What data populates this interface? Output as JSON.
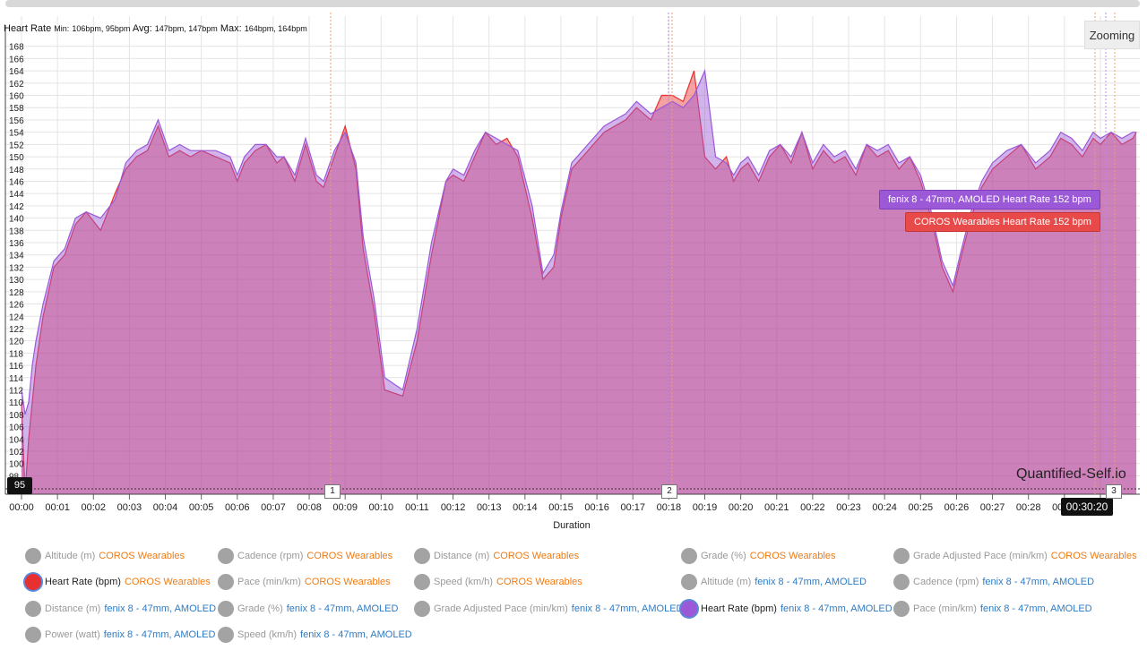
{
  "chart_data": {
    "type": "area",
    "title": "Heart Rate",
    "stats": {
      "min_label": "Min:",
      "min_value": "106bpm, 95bpm",
      "avg_label": "Avg:",
      "avg_value": "147bpm, 147bpm",
      "max_label": "Max:",
      "max_value": "164bpm, 164bpm"
    },
    "xlabel": "Duration",
    "ylim": [
      95,
      170
    ],
    "xlim": [
      0,
      31
    ],
    "y_ticks": [
      98,
      100,
      102,
      104,
      106,
      108,
      110,
      112,
      114,
      116,
      118,
      120,
      122,
      124,
      126,
      128,
      130,
      132,
      134,
      136,
      138,
      140,
      142,
      144,
      146,
      148,
      150,
      152,
      154,
      156,
      158,
      160,
      162,
      164,
      166,
      168
    ],
    "x_ticks": [
      "00:00",
      "00:01",
      "00:02",
      "00:03",
      "00:04",
      "00:05",
      "00:06",
      "00:07",
      "00:08",
      "00:09",
      "00:10",
      "00:11",
      "00:12",
      "00:13",
      "00:14",
      "00:15",
      "00:16",
      "00:17",
      "00:18",
      "00:19",
      "00:20",
      "00:21",
      "00:22",
      "00:23",
      "00:24",
      "00:25",
      "00:26",
      "00:27",
      "00:28",
      "00:29",
      "00:3"
    ],
    "series": [
      {
        "name": "COROS Wearables Heart Rate",
        "color": "#e83030",
        "x": [
          0,
          0.1,
          0.2,
          0.3,
          0.4,
          0.6,
          0.9,
          1.2,
          1.5,
          1.8,
          2.2,
          2.6,
          2.9,
          3.2,
          3.5,
          3.8,
          4.1,
          4.4,
          4.7,
          5.0,
          5.4,
          5.8,
          6.0,
          6.2,
          6.5,
          6.8,
          7.1,
          7.3,
          7.6,
          7.9,
          8.2,
          8.4,
          8.7,
          9.0,
          9.3,
          9.5,
          9.8,
          10.1,
          10.6,
          11.0,
          11.4,
          11.8,
          12.0,
          12.3,
          12.6,
          12.9,
          13.2,
          13.5,
          13.8,
          14.2,
          14.5,
          14.8,
          15.0,
          15.3,
          15.6,
          15.9,
          16.2,
          16.5,
          16.8,
          17.1,
          17.5,
          17.8,
          18.1,
          18.4,
          18.7,
          19.0,
          19.3,
          19.6,
          19.8,
          20.0,
          20.2,
          20.5,
          20.8,
          21.1,
          21.4,
          21.7,
          22.0,
          22.3,
          22.6,
          22.9,
          23.2,
          23.5,
          23.8,
          24.1,
          24.4,
          24.7,
          25.0,
          25.3,
          25.6,
          25.9,
          26.1,
          26.4,
          26.7,
          27.0,
          27.4,
          27.8,
          28.2,
          28.6,
          28.9,
          29.2,
          29.5,
          29.8,
          30.0,
          30.3,
          30.6,
          30.9,
          31.0
        ],
        "y": [
          110,
          95,
          104,
          110,
          116,
          124,
          132,
          134,
          139,
          141,
          138,
          144,
          148,
          150,
          151,
          155,
          150,
          151,
          150,
          151,
          150,
          149,
          146,
          149,
          151,
          152,
          149,
          150,
          146,
          152,
          146,
          145,
          150,
          155,
          148,
          135,
          125,
          112,
          111,
          120,
          134,
          146,
          147,
          146,
          150,
          154,
          152,
          153,
          150,
          140,
          130,
          132,
          140,
          148,
          150,
          152,
          154,
          155,
          156,
          158,
          156,
          160,
          160,
          159,
          164,
          150,
          148,
          150,
          146,
          148,
          149,
          146,
          150,
          152,
          149,
          154,
          148,
          151,
          149,
          150,
          147,
          152,
          150,
          151,
          148,
          150,
          146,
          140,
          132,
          128,
          133,
          140,
          145,
          148,
          150,
          152,
          148,
          150,
          153,
          152,
          150,
          153,
          152,
          154,
          152,
          153,
          154
        ],
        "comment": "approximate trace"
      },
      {
        "name": "fenix 8 - 47mm, AMOLED Heart Rate",
        "color": "#9b59d8",
        "x": [
          0,
          0.1,
          0.2,
          0.3,
          0.4,
          0.6,
          0.9,
          1.2,
          1.5,
          1.8,
          2.2,
          2.6,
          2.9,
          3.2,
          3.5,
          3.8,
          4.1,
          4.4,
          4.7,
          5.0,
          5.4,
          5.8,
          6.0,
          6.2,
          6.5,
          6.8,
          7.1,
          7.3,
          7.6,
          7.9,
          8.2,
          8.4,
          8.7,
          9.0,
          9.3,
          9.5,
          9.8,
          10.1,
          10.6,
          11.0,
          11.4,
          11.8,
          12.0,
          12.3,
          12.6,
          12.9,
          13.2,
          13.5,
          13.8,
          14.2,
          14.5,
          14.8,
          15.0,
          15.3,
          15.6,
          15.9,
          16.2,
          16.5,
          16.8,
          17.1,
          17.5,
          17.8,
          18.1,
          18.4,
          18.7,
          19.0,
          19.3,
          19.6,
          19.8,
          20.0,
          20.2,
          20.5,
          20.8,
          21.1,
          21.4,
          21.7,
          22.0,
          22.3,
          22.6,
          22.9,
          23.2,
          23.5,
          23.8,
          24.1,
          24.4,
          24.7,
          25.0,
          25.3,
          25.6,
          25.9,
          26.1,
          26.4,
          26.7,
          27.0,
          27.4,
          27.8,
          28.2,
          28.6,
          28.9,
          29.2,
          29.5,
          29.8,
          30.0,
          30.3,
          30.6,
          30.9,
          31.0
        ],
        "y": [
          112,
          108,
          110,
          116,
          120,
          126,
          133,
          135,
          140,
          141,
          140,
          143,
          149,
          151,
          152,
          156,
          151,
          152,
          151,
          151,
          151,
          150,
          147,
          150,
          152,
          152,
          150,
          150,
          147,
          153,
          147,
          146,
          151,
          154,
          149,
          137,
          127,
          114,
          112,
          122,
          136,
          146,
          148,
          147,
          151,
          154,
          153,
          152,
          151,
          142,
          131,
          134,
          141,
          149,
          151,
          153,
          155,
          156,
          157,
          159,
          157,
          158,
          159,
          158,
          160,
          164,
          150,
          149,
          147,
          149,
          150,
          147,
          151,
          152,
          150,
          154,
          149,
          152,
          150,
          151,
          148,
          152,
          151,
          152,
          149,
          150,
          147,
          141,
          133,
          129,
          134,
          141,
          146,
          149,
          151,
          152,
          149,
          151,
          154,
          153,
          151,
          154,
          153,
          154,
          153,
          154,
          154
        ],
        "comment": "approximate trace"
      }
    ]
  },
  "zoom_button_label": "Zooming",
  "watermark": "Quantified-Self.io",
  "tooltips": {
    "fenix": "fenix 8 - 47mm, AMOLED Heart Rate 152 bpm",
    "coros": "COROS Wearables Heart Rate 152 bpm"
  },
  "cursor": {
    "y_value": "95",
    "x_value": "00:30:20"
  },
  "laps": [
    "1",
    "2",
    "3"
  ],
  "legend": [
    {
      "metric": "Altitude (m)",
      "device": "COROS Wearables",
      "dev": "coros",
      "active": false
    },
    {
      "metric": "Cadence (rpm)",
      "device": "COROS Wearables",
      "dev": "coros",
      "active": false
    },
    {
      "metric": "Distance (m)",
      "device": "COROS Wearables",
      "dev": "coros",
      "active": false
    },
    {
      "metric": "Grade (%)",
      "device": "COROS Wearables",
      "dev": "coros",
      "active": false
    },
    {
      "metric": "Grade Adjusted Pace (min/km)",
      "device": "COROS Wearables",
      "dev": "coros",
      "active": false
    },
    {
      "metric": "Heart Rate (bpm)",
      "device": "COROS Wearables",
      "dev": "coros",
      "active": true
    },
    {
      "metric": "Pace (min/km)",
      "device": "COROS Wearables",
      "dev": "coros",
      "active": false
    },
    {
      "metric": "Speed (km/h)",
      "device": "COROS Wearables",
      "dev": "coros",
      "active": false
    },
    {
      "metric": "Altitude (m)",
      "device": "fenix 8 - 47mm, AMOLED",
      "dev": "fenix",
      "active": false
    },
    {
      "metric": "Cadence (rpm)",
      "device": "fenix 8 - 47mm, AMOLED",
      "dev": "fenix",
      "active": false
    },
    {
      "metric": "Distance (m)",
      "device": "fenix 8 - 47mm, AMOLED",
      "dev": "fenix",
      "active": false
    },
    {
      "metric": "Grade (%)",
      "device": "fenix 8 - 47mm, AMOLED",
      "dev": "fenix",
      "active": false
    },
    {
      "metric": "Grade Adjusted Pace (min/km)",
      "device": "fenix 8 - 47mm, AMOLED",
      "dev": "fenix",
      "active": false
    },
    {
      "metric": "Heart Rate (bpm)",
      "device": "fenix 8 - 47mm, AMOLED",
      "dev": "fenix",
      "active": true
    },
    {
      "metric": "Pace (min/km)",
      "device": "fenix 8 - 47mm, AMOLED",
      "dev": "fenix",
      "active": false
    },
    {
      "metric": "Power (watt)",
      "device": "fenix 8 - 47mm, AMOLED",
      "dev": "fenix",
      "active": false
    },
    {
      "metric": "Speed (km/h)",
      "device": "fenix 8 - 47mm, AMOLED",
      "dev": "fenix",
      "active": false
    }
  ]
}
